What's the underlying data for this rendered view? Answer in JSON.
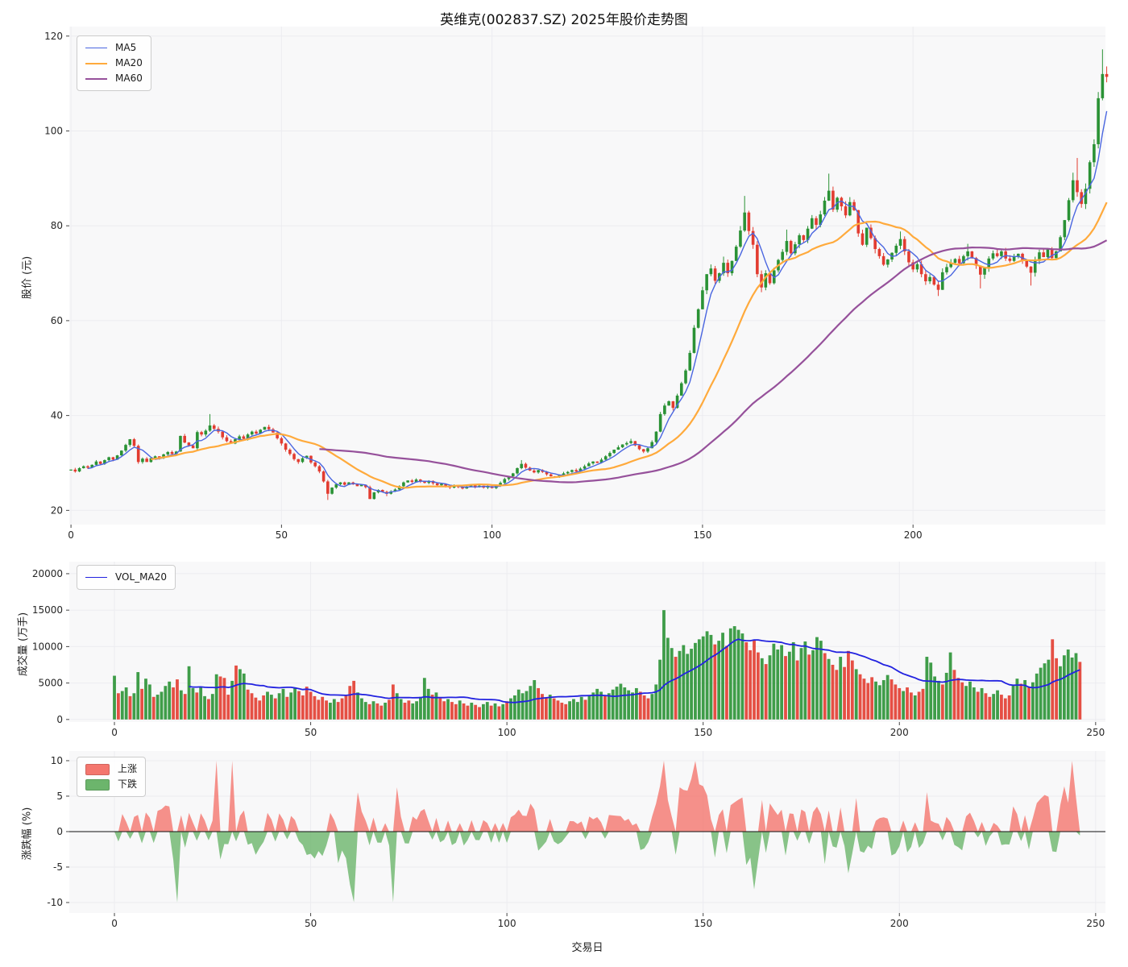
{
  "title": "英维克(002837.SZ) 2025年股价走势图",
  "colors": {
    "up": "#2a9235",
    "down": "#e23c30",
    "ma5": "#4a66e0",
    "ma20": "#ffaa3c",
    "ma60": "#96519b",
    "vol_ma20": "#2222e0",
    "pct_up_fill": "#f4766e",
    "pct_down_fill": "#6cb56c",
    "axes_bg": "#f8f8f9",
    "grid": "#ececf0"
  },
  "price_panel": {
    "ylabel": "股价 (元)",
    "yticks": [
      20,
      40,
      60,
      80,
      100,
      120
    ],
    "xticks": [
      0,
      50,
      100,
      150,
      200
    ],
    "legend": [
      {
        "label": "MA5",
        "color": "#4a66e0"
      },
      {
        "label": "MA20",
        "color": "#ffaa3c"
      },
      {
        "label": "MA60",
        "color": "#96519b"
      }
    ]
  },
  "volume_panel": {
    "ylabel": "成交量 (万手)",
    "yticks": [
      0,
      5000,
      10000,
      15000,
      20000
    ],
    "xticks": [
      0,
      50,
      100,
      150,
      200,
      250
    ],
    "legend": [
      {
        "label": "VOL_MA20",
        "color": "#2222e0"
      }
    ]
  },
  "pct_panel": {
    "ylabel": "涨跌幅 (%)",
    "xlabel": "交易日",
    "yticks": [
      -10,
      -5,
      0,
      5,
      10
    ],
    "xticks": [
      0,
      50,
      100,
      150,
      200,
      250
    ],
    "legend": [
      {
        "label": "上涨",
        "color": "#f4766e"
      },
      {
        "label": "下跌",
        "color": "#6cb56c"
      }
    ]
  },
  "chart_data": [
    {
      "type": "candlestick",
      "title": "英维克(002837.SZ) 2025年股价走势图",
      "xlabel": "",
      "ylabel": "股价 (元)",
      "x_is": "trading-day index",
      "n_days": 247,
      "ylim": [
        17,
        122
      ],
      "yticks": [
        20,
        40,
        60,
        80,
        100,
        120
      ],
      "xticks": [
        0,
        50,
        100,
        150,
        200
      ],
      "legend_position": "upper-left",
      "grid": true,
      "series_overlays": [
        "MA5",
        "MA20",
        "MA60"
      ],
      "close": [
        28.6,
        28.2,
        28.9,
        29.3,
        29.0,
        29.6,
        30.3,
        29.8,
        30.6,
        31.2,
        30.7,
        31.6,
        32.6,
        33.8,
        35.0,
        33.6,
        30.2,
        30.9,
        30.2,
        31.0,
        31.4,
        31.0,
        31.8,
        32.3,
        31.9,
        32.4,
        35.7,
        34.3,
        33.7,
        33.1,
        36.5,
        36.0,
        36.8,
        37.9,
        37.2,
        36.6,
        35.4,
        34.6,
        34.1,
        35.0,
        35.6,
        35.1,
        36.0,
        36.6,
        36.2,
        37.0,
        37.6,
        37.1,
        36.4,
        35.2,
        34.1,
        32.8,
        31.9,
        30.8,
        30.2,
        31.0,
        31.5,
        30.1,
        29.3,
        28.2,
        26.1,
        23.5,
        24.8,
        25.5,
        25.9,
        25.4,
        25.9,
        25.5,
        25.1,
        25.4,
        24.9,
        22.4,
        23.8,
        24.3,
        23.9,
        23.5,
        24.0,
        24.4,
        25.1,
        25.9,
        26.3,
        26.0,
        26.5,
        26.1,
        25.8,
        26.2,
        25.7,
        25.3,
        25.6,
        25.1,
        24.8,
        25.2,
        24.9,
        24.6,
        25.0,
        25.3,
        24.9,
        25.2,
        24.8,
        25.1,
        24.7,
        25.2,
        25.8,
        26.6,
        27.2,
        27.8,
        28.9,
        29.8,
        29.0,
        28.4,
        28.0,
        28.5,
        28.1,
        27.6,
        27.2,
        27.0,
        27.4,
        27.8,
        28.1,
        28.5,
        28.2,
        28.8,
        29.3,
        29.9,
        30.3,
        30.0,
        30.7,
        31.4,
        32.1,
        32.8,
        33.3,
        33.9,
        34.2,
        34.6,
        33.7,
        32.9,
        32.4,
        33.1,
        34.4,
        36.6,
        40.3,
        42.1,
        43.0,
        41.6,
        44.2,
        46.8,
        49.5,
        53.2,
        58.5,
        62.4,
        66.4,
        69.8,
        71.0,
        68.4,
        70.0,
        72.2,
        70.0,
        72.6,
        75.6,
        79.0,
        82.8,
        78.9,
        76.0,
        69.8,
        67.0,
        70.0,
        67.9,
        70.6,
        72.8,
        74.5,
        76.8,
        74.2,
        76.1,
        78.0,
        77.0,
        79.4,
        81.6,
        80.2,
        82.4,
        85.3,
        87.4,
        83.4,
        85.9,
        84.1,
        82.2,
        85.0,
        83.3,
        78.4,
        76.0,
        79.6,
        77.4,
        75.1,
        73.6,
        71.8,
        72.9,
        74.3,
        75.8,
        77.2,
        74.6,
        72.3,
        70.8,
        71.9,
        69.8,
        68.3,
        69.2,
        67.6,
        66.5,
        70.2,
        71.3,
        72.2,
        73.0,
        72.1,
        73.6,
        74.6,
        73.2,
        71.6,
        69.7,
        71.2,
        73.1,
        74.2,
        73.6,
        74.6,
        73.1,
        72.6,
        73.5,
        74.1,
        72.7,
        71.4,
        70.1,
        72.6,
        74.4,
        73.4,
        75.1,
        73.2,
        74.6,
        77.6,
        81.2,
        85.4,
        89.6,
        87.1,
        84.6,
        87.8,
        93.4,
        97.2,
        106.9,
        112.0,
        111.4
      ],
      "open_rule": "open[0]=28.4; open[i]=close[i-1]",
      "high_overrides": {
        "33": 40.3,
        "107": 30.6,
        "133": 35.1,
        "155": 73.5,
        "160": 86.3,
        "170": 79.2,
        "180": 91.0,
        "197": 78.8,
        "213": 76.2,
        "238": 91.2,
        "239": 94.3,
        "245": 117.2,
        "246": 113.6
      },
      "low_overrides": {
        "61": 22.2,
        "75": 23.0,
        "164": 66.0,
        "206": 65.2,
        "216": 66.8,
        "228": 67.4
      },
      "up_color": "#2a9235",
      "down_color": "#e23c30"
    },
    {
      "type": "bar",
      "ylabel": "成交量 (万手)",
      "x_is": "trading-day index (shared with candlestick)",
      "ylim": [
        0,
        21650
      ],
      "yticks": [
        0,
        5000,
        10000,
        15000,
        20000
      ],
      "xticks": [
        0,
        50,
        100,
        150,
        200,
        250
      ],
      "legend_position": "upper-left",
      "grid": true,
      "overlay_line": "VOL_MA20 (20-day moving average of volume)",
      "values": [
        6000,
        3600,
        3900,
        4400,
        3200,
        3600,
        6500,
        4200,
        5600,
        4800,
        3100,
        3400,
        3800,
        4600,
        5200,
        4400,
        5500,
        4000,
        3500,
        7300,
        4300,
        3700,
        4400,
        3200,
        2800,
        3500,
        6200,
        5900,
        5700,
        3400,
        5300,
        7400,
        6900,
        6300,
        4100,
        3600,
        3000,
        2600,
        3300,
        3800,
        3400,
        2900,
        3600,
        4200,
        3100,
        3700,
        4400,
        3900,
        3300,
        4500,
        3800,
        3200,
        2700,
        3100,
        2600,
        2300,
        2800,
        2400,
        2900,
        3400,
        4600,
        5300,
        3700,
        2900,
        2400,
        2100,
        2500,
        2200,
        1900,
        2300,
        2700,
        4800,
        3600,
        2800,
        2300,
        2600,
        2200,
        2500,
        3100,
        5700,
        4200,
        3400,
        3700,
        2900,
        2500,
        2800,
        2400,
        2100,
        2600,
        2200,
        1900,
        2300,
        2000,
        1700,
        2100,
        2400,
        1900,
        2200,
        1800,
        2100,
        2500,
        2900,
        3300,
        4100,
        3600,
        3900,
        4600,
        5400,
        4300,
        3500,
        3000,
        3400,
        2900,
        2600,
        2300,
        2100,
        2500,
        2800,
        2400,
        3100,
        2700,
        3300,
        3700,
        4200,
        3800,
        3200,
        3600,
        4100,
        4500,
        4900,
        4400,
        4000,
        3700,
        4300,
        3800,
        3300,
        2900,
        3500,
        4800,
        8200,
        15000,
        11200,
        9800,
        8600,
        9400,
        10200,
        9000,
        9700,
        10500,
        11000,
        11400,
        12100,
        11600,
        10300,
        10800,
        11900,
        10100,
        12500,
        12800,
        12300,
        11800,
        10600,
        9500,
        10900,
        9200,
        8400,
        7600,
        8800,
        10400,
        9600,
        10200,
        8700,
        9300,
        10600,
        8100,
        9800,
        10700,
        8900,
        9500,
        11300,
        10800,
        9100,
        8300,
        7500,
        6800,
        8600,
        7200,
        9400,
        8100,
        6900,
        6200,
        5600,
        5000,
        5800,
        5200,
        4700,
        5400,
        6100,
        5500,
        4800,
        4300,
        3900,
        4400,
        3700,
        3300,
        3800,
        4200,
        8600,
        7800,
        5900,
        5300,
        4800,
        6400,
        9200,
        6800,
        5700,
        5100,
        4600,
        5200,
        4400,
        3800,
        4300,
        3600,
        3100,
        3500,
        4000,
        3400,
        2900,
        3300,
        4700,
        5600,
        4900,
        5400,
        4500,
        5100,
        6300,
        7100,
        7700,
        8200,
        11000,
        8400,
        7300,
        8800,
        9600,
        8500,
        9100,
        7900
      ],
      "bar_colors": "green if close>=open else red (same as candles)"
    },
    {
      "type": "area",
      "ylabel": "涨跌幅 (%)",
      "xlabel": "交易日",
      "x_is": "trading-day index (shared with candlestick)",
      "ylim": [
        -11.5,
        11.4
      ],
      "yticks": [
        -10,
        -5,
        0,
        5,
        10
      ],
      "xticks": [
        0,
        50,
        100,
        150,
        200,
        250
      ],
      "legend_position": "upper-left",
      "grid": true,
      "values_rule": "daily percent change of close, clipped to [-10, +10]; red fill where positive (上涨), green fill where negative (下跌); black zero line",
      "legend": [
        {
          "label": "上涨",
          "color": "#f4766e"
        },
        {
          "label": "下跌",
          "color": "#6cb56c"
        }
      ]
    }
  ]
}
